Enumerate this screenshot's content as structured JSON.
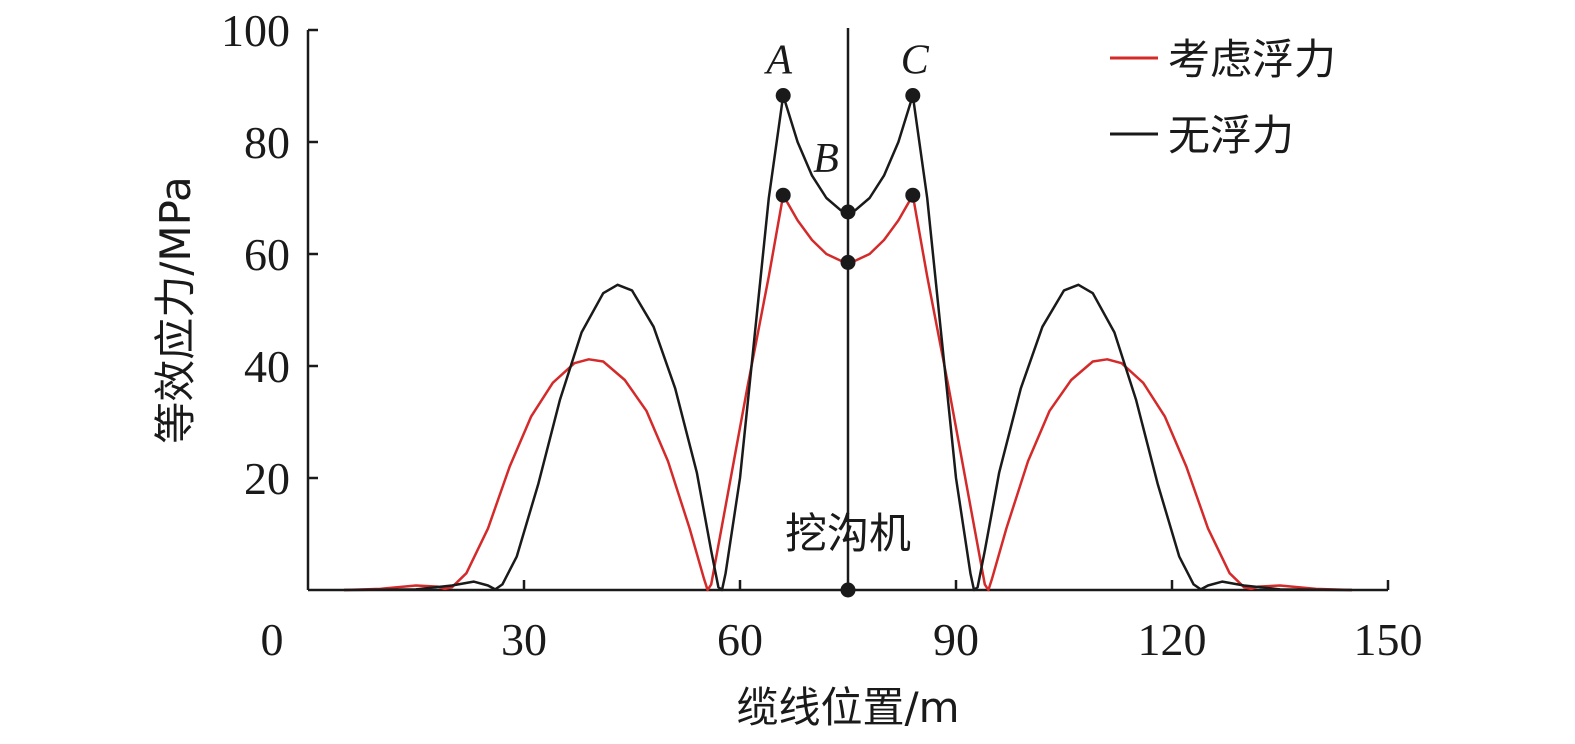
{
  "chart_data": {
    "type": "line",
    "xlabel": "缆线位置/m",
    "ylabel": "等效应力/MPa",
    "xlim": [
      0,
      150
    ],
    "ylim": [
      0,
      100
    ],
    "x_ticks": [
      0,
      30,
      60,
      90,
      120,
      150
    ],
    "y_ticks": [
      20,
      40,
      60,
      80,
      100
    ],
    "grid": false,
    "legend_position": "top-right",
    "marker_line_label": "挖沟机",
    "marker_line_x": 75,
    "series": [
      {
        "name": "考虑浮力",
        "color": "#d42a2a",
        "points": [
          [
            5,
            0
          ],
          [
            10,
            0.2
          ],
          [
            15,
            0.8
          ],
          [
            18,
            0.6
          ],
          [
            19,
            0.2
          ],
          [
            20,
            0.5
          ],
          [
            22,
            3
          ],
          [
            25,
            11
          ],
          [
            28,
            22
          ],
          [
            31,
            31
          ],
          [
            34,
            37
          ],
          [
            37,
            40.5
          ],
          [
            39,
            41.2
          ],
          [
            41,
            40.8
          ],
          [
            44,
            37.5
          ],
          [
            47,
            32
          ],
          [
            50,
            23
          ],
          [
            53,
            11
          ],
          [
            55,
            2
          ],
          [
            55.5,
            0
          ],
          [
            56,
            1
          ],
          [
            58,
            15
          ],
          [
            61,
            36
          ],
          [
            64,
            56
          ],
          [
            66,
            70.5
          ],
          [
            68,
            66
          ],
          [
            70,
            62.5
          ],
          [
            72,
            60
          ],
          [
            74,
            58.8
          ],
          [
            75,
            58.5
          ],
          [
            76,
            58.8
          ],
          [
            78,
            60
          ],
          [
            80,
            62.5
          ],
          [
            82,
            66
          ],
          [
            84,
            70.5
          ],
          [
            86,
            56
          ],
          [
            89,
            36
          ],
          [
            92,
            15
          ],
          [
            94,
            1
          ],
          [
            94.5,
            0
          ],
          [
            95,
            2
          ],
          [
            97,
            11
          ],
          [
            100,
            23
          ],
          [
            103,
            32
          ],
          [
            106,
            37.5
          ],
          [
            109,
            40.8
          ],
          [
            111,
            41.2
          ],
          [
            113,
            40.5
          ],
          [
            116,
            37
          ],
          [
            119,
            31
          ],
          [
            122,
            22
          ],
          [
            125,
            11
          ],
          [
            128,
            3
          ],
          [
            130,
            0.5
          ],
          [
            131,
            0.2
          ],
          [
            132,
            0.6
          ],
          [
            135,
            0.8
          ],
          [
            140,
            0.2
          ],
          [
            145,
            0
          ]
        ]
      },
      {
        "name": "无浮力",
        "color": "#1a1a1a",
        "points": [
          [
            5,
            0
          ],
          [
            15,
            0.1
          ],
          [
            20,
            0.8
          ],
          [
            23,
            1.5
          ],
          [
            25,
            0.8
          ],
          [
            26,
            0.1
          ],
          [
            27,
            1
          ],
          [
            29,
            6
          ],
          [
            32,
            19
          ],
          [
            35,
            34
          ],
          [
            38,
            46
          ],
          [
            41,
            53
          ],
          [
            43,
            54.5
          ],
          [
            45,
            53.5
          ],
          [
            48,
            47
          ],
          [
            51,
            36
          ],
          [
            54,
            21
          ],
          [
            56,
            7
          ],
          [
            57,
            0.5
          ],
          [
            57.5,
            0
          ],
          [
            58,
            3
          ],
          [
            60,
            20
          ],
          [
            62,
            45
          ],
          [
            64,
            70
          ],
          [
            66,
            88.3
          ],
          [
            68,
            80
          ],
          [
            70,
            74
          ],
          [
            72,
            70
          ],
          [
            74,
            67.8
          ],
          [
            75,
            67.5
          ],
          [
            76,
            67.8
          ],
          [
            78,
            70
          ],
          [
            80,
            74
          ],
          [
            82,
            80
          ],
          [
            84,
            88.3
          ],
          [
            86,
            70
          ],
          [
            88,
            45
          ],
          [
            90,
            20
          ],
          [
            92,
            3
          ],
          [
            92.5,
            0
          ],
          [
            93,
            0.5
          ],
          [
            94,
            7
          ],
          [
            96,
            21
          ],
          [
            99,
            36
          ],
          [
            102,
            47
          ],
          [
            105,
            53.5
          ],
          [
            107,
            54.5
          ],
          [
            109,
            53
          ],
          [
            112,
            46
          ],
          [
            115,
            34
          ],
          [
            118,
            19
          ],
          [
            121,
            6
          ],
          [
            123,
            1
          ],
          [
            124,
            0.1
          ],
          [
            125,
            0.8
          ],
          [
            127,
            1.5
          ],
          [
            130,
            0.8
          ],
          [
            135,
            0.1
          ],
          [
            145,
            0
          ]
        ]
      }
    ],
    "points": [
      {
        "label": "A",
        "x": 66,
        "series": "无浮力",
        "y": 88.3
      },
      {
        "label": "",
        "x": 66,
        "series": "考虑浮力",
        "y": 70.5
      },
      {
        "label": "B",
        "x": 75,
        "series": "无浮力",
        "y": 67.5
      },
      {
        "label": "",
        "x": 75,
        "series": "考虑浮力",
        "y": 58.5
      },
      {
        "label": "C",
        "x": 84,
        "series": "无浮力",
        "y": 88.3
      },
      {
        "label": "",
        "x": 84,
        "series": "考虑浮力",
        "y": 70.5
      },
      {
        "label": "",
        "x": 75,
        "series": "marker",
        "y": 0
      }
    ]
  }
}
